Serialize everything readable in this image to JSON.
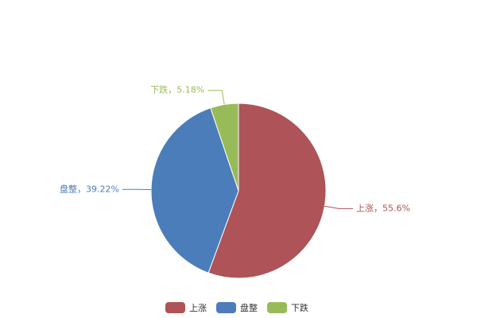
{
  "chart_data": {
    "type": "pie",
    "categories": [
      "上涨",
      "盘整",
      "下跌"
    ],
    "values": [
      55.6,
      39.22,
      5.18
    ],
    "value_labels": [
      "上涨，55.6%",
      "盘整，39.22%",
      "下跌，5.18%"
    ],
    "colors": [
      "#ae5358",
      "#4a7dba",
      "#98bb59"
    ],
    "legend": "bottom"
  }
}
